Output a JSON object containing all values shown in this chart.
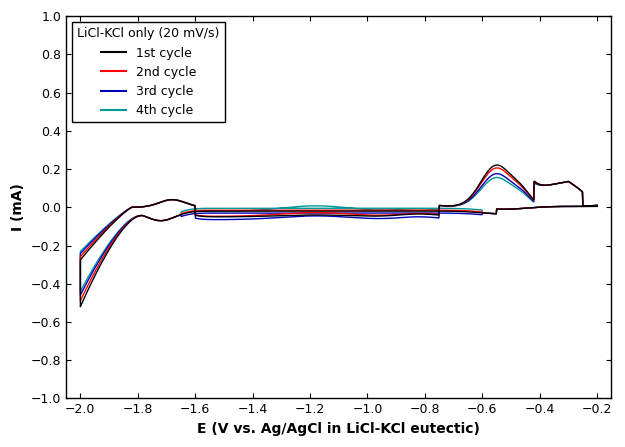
{
  "xlabel": "E (V vs. Ag/AgCl in LiCl-KCl eutectic)",
  "ylabel": "I (mA)",
  "legend_title": "LiCl-KCl only (20 mV/s)",
  "legend_entries": [
    "1st cycle",
    "2nd cycle",
    "3rd cycle",
    "4th cycle"
  ],
  "colors": [
    "#000000",
    "#ff0000",
    "#0000bb",
    "#009999"
  ],
  "xlim": [
    -2.05,
    -0.15
  ],
  "ylim": [
    -1.0,
    1.0
  ],
  "xticks": [
    -2.0,
    -1.8,
    -1.6,
    -1.4,
    -1.2,
    -1.0,
    -0.8,
    -0.6,
    -0.4,
    -0.2
  ],
  "yticks": [
    -1.0,
    -0.8,
    -0.6,
    -0.4,
    -0.2,
    0.0,
    0.2,
    0.4,
    0.6,
    0.8,
    1.0
  ],
  "figsize": [
    6.25,
    4.47
  ],
  "dpi": 100
}
